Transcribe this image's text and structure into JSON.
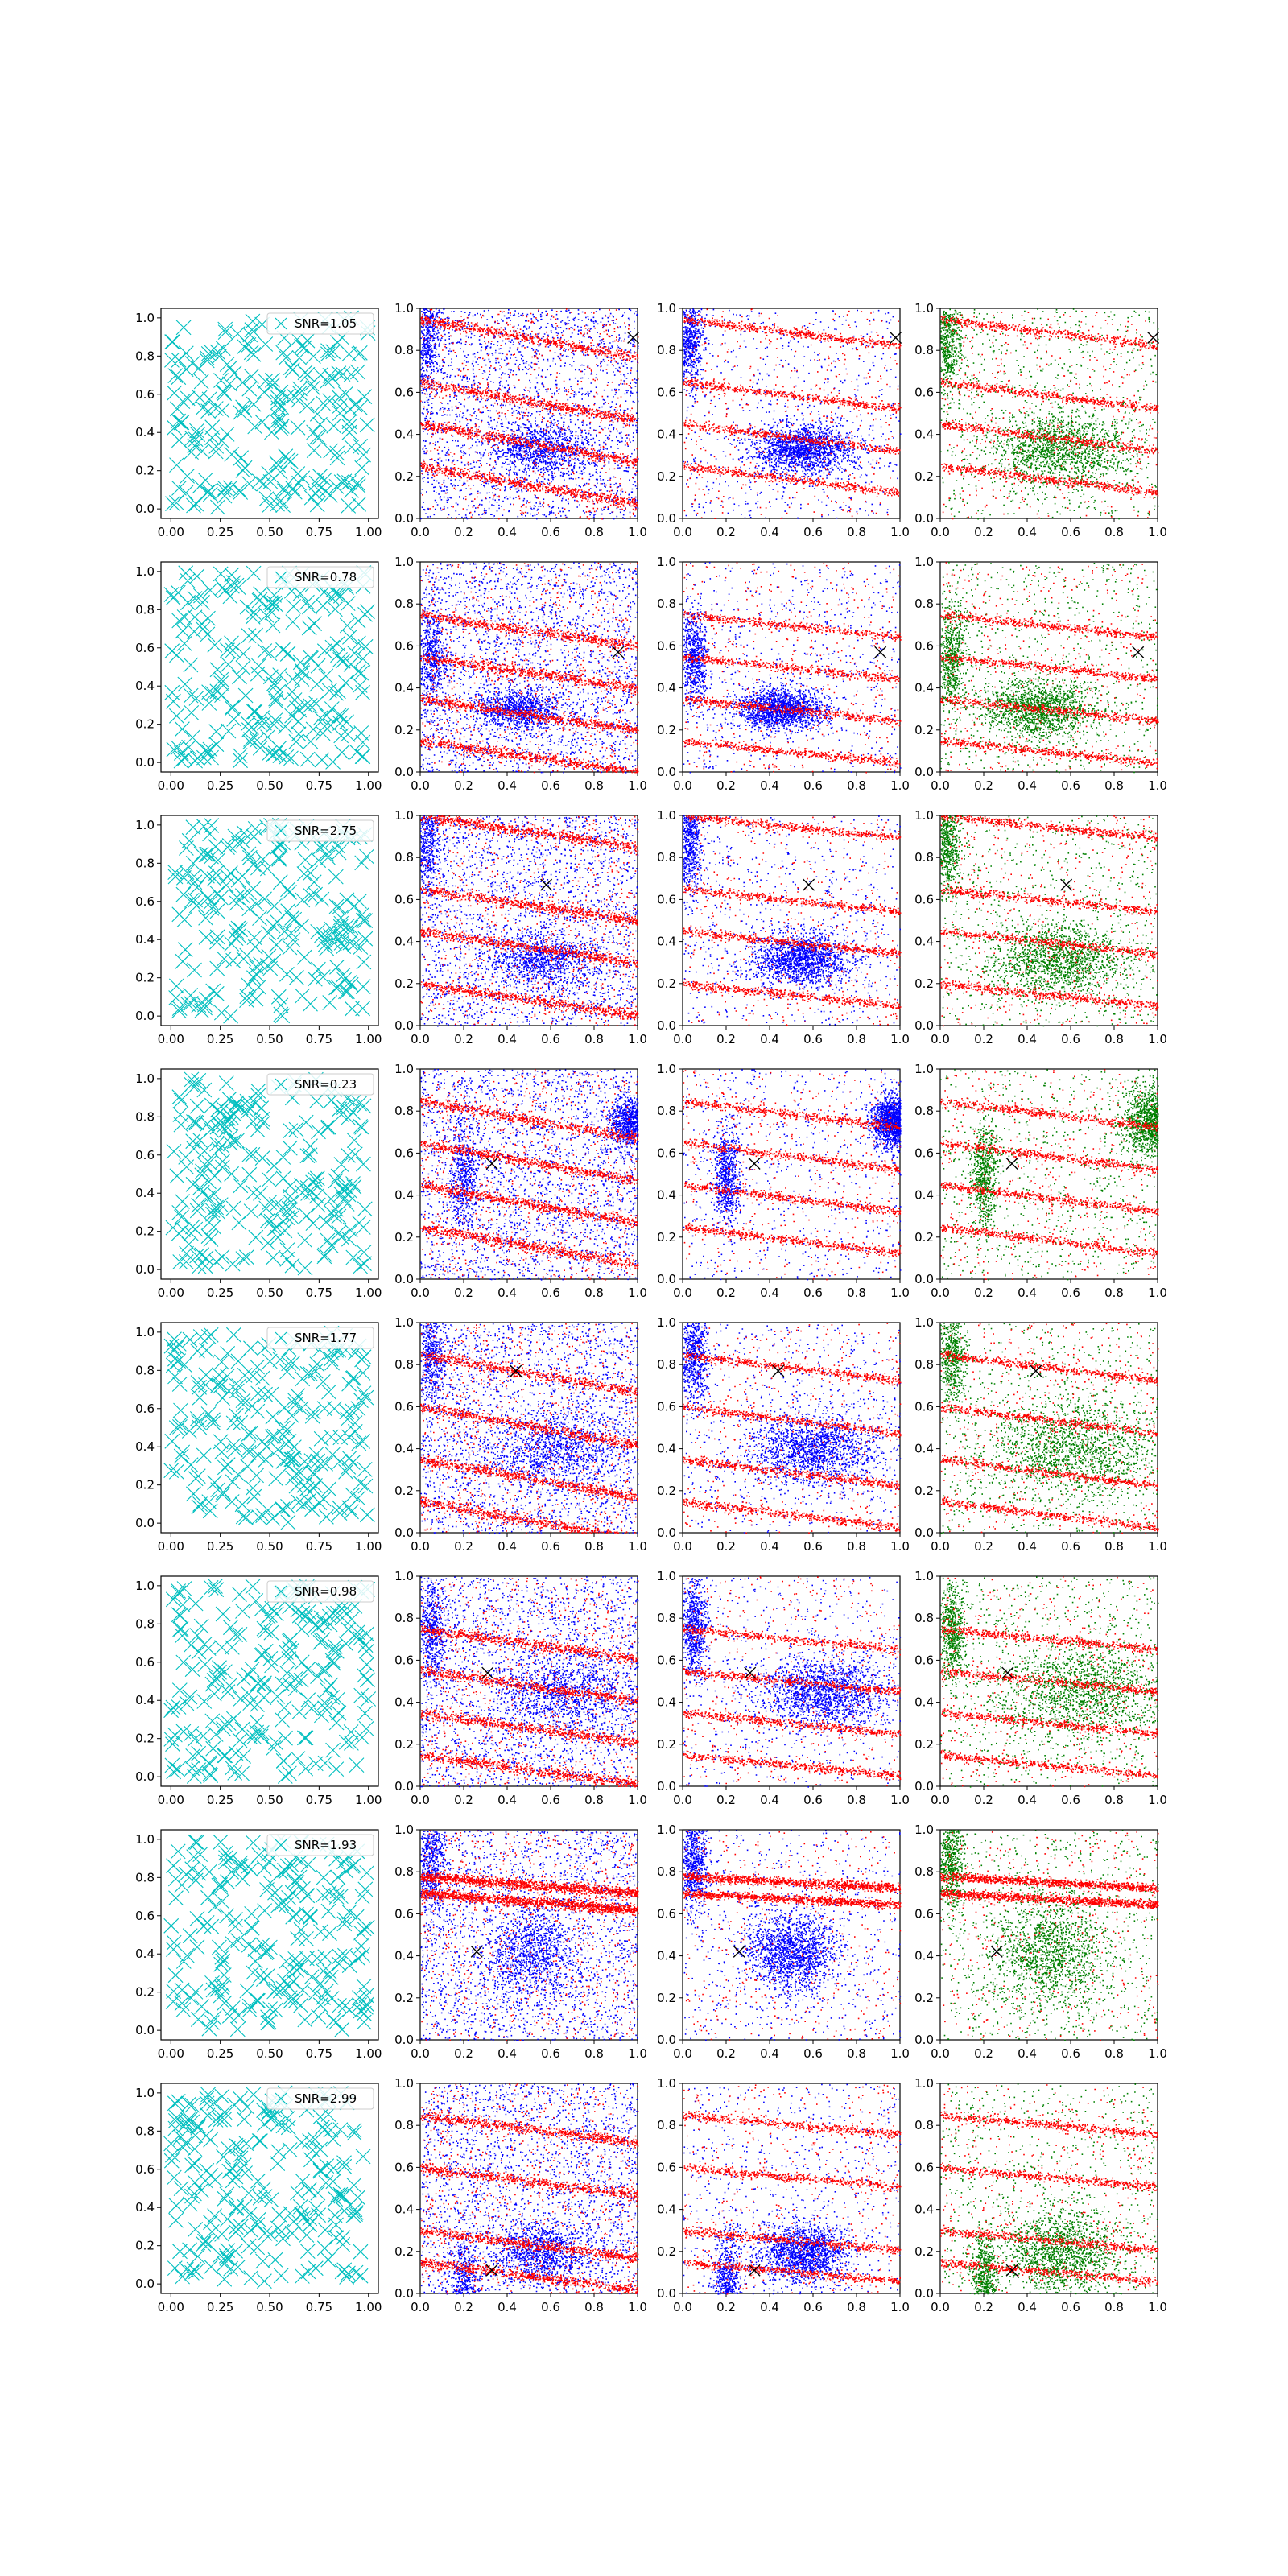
{
  "figure": {
    "rows": 8,
    "cols": 4,
    "colors": {
      "cross": "#00bfbf",
      "red": "#ff0000",
      "blue": "#0000ff",
      "green": "#008000",
      "marker": "#000000"
    }
  },
  "axes": {
    "col1": {
      "xticks": [
        "0.00",
        "0.25",
        "0.50",
        "0.75",
        "1.00"
      ],
      "yticks": [
        "0.0",
        "0.2",
        "0.4",
        "0.6",
        "0.8",
        "1.0"
      ]
    },
    "other": {
      "xticks": [
        "0.0",
        "0.2",
        "0.4",
        "0.6",
        "0.8",
        "1.0"
      ],
      "yticks": [
        "0.0",
        "0.2",
        "0.4",
        "0.6",
        "0.8",
        "1.0"
      ]
    }
  },
  "chart_data": [
    {
      "row": 1,
      "type": "scatter",
      "legend": "SNR=1.05",
      "marker_xy": [
        0.98,
        0.86
      ],
      "xlim": [
        0,
        1
      ],
      "ylim": [
        0,
        1
      ]
    },
    {
      "row": 2,
      "type": "scatter",
      "legend": "SNR=0.78",
      "marker_xy": [
        0.91,
        0.57
      ],
      "xlim": [
        0,
        1
      ],
      "ylim": [
        0,
        1
      ]
    },
    {
      "row": 3,
      "type": "scatter",
      "legend": "SNR=2.75",
      "marker_xy": [
        0.58,
        0.67
      ],
      "xlim": [
        0,
        1
      ],
      "ylim": [
        0,
        1
      ]
    },
    {
      "row": 4,
      "type": "scatter",
      "legend": "SNR=0.23",
      "marker_xy": [
        0.33,
        0.55
      ],
      "xlim": [
        0,
        1
      ],
      "ylim": [
        0,
        1
      ]
    },
    {
      "row": 5,
      "type": "scatter",
      "legend": "SNR=1.77",
      "marker_xy": [
        0.44,
        0.77
      ],
      "xlim": [
        0,
        1
      ],
      "ylim": [
        0,
        1
      ]
    },
    {
      "row": 6,
      "type": "scatter",
      "legend": "SNR=0.98",
      "marker_xy": [
        0.31,
        0.54
      ],
      "xlim": [
        0,
        1
      ],
      "ylim": [
        0,
        1
      ]
    },
    {
      "row": 7,
      "type": "scatter",
      "legend": "SNR=1.93",
      "marker_xy": [
        0.26,
        0.42
      ],
      "xlim": [
        0,
        1
      ],
      "ylim": [
        0,
        1
      ]
    },
    {
      "row": 8,
      "type": "scatter",
      "legend": "SNR=2.99",
      "marker_xy": [
        0.33,
        0.11
      ],
      "xlim": [
        0,
        1
      ],
      "ylim": [
        0,
        1
      ]
    }
  ]
}
